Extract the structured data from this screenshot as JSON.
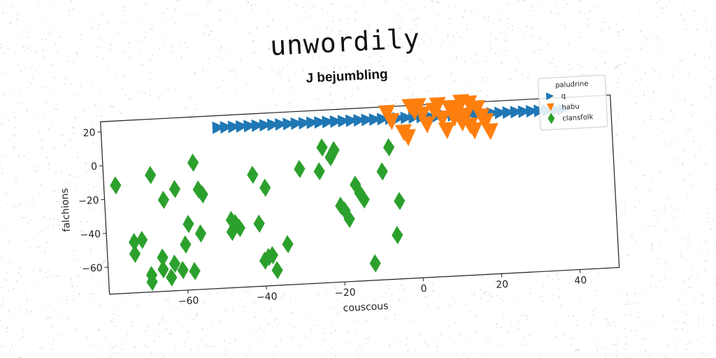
{
  "chart_data": {
    "type": "scatter",
    "title": "unwordily",
    "subtitle": "J bejumbling",
    "xlabel": "couscous",
    "ylabel": "falchions",
    "xlim": [
      -80,
      50
    ],
    "ylim": [
      -76,
      26
    ],
    "xticks": [
      -60,
      -40,
      -20,
      0,
      20,
      40
    ],
    "yticks": [
      20,
      0,
      -20,
      -40,
      -60
    ],
    "grid": false,
    "legend": {
      "title": "paludrine",
      "placement": "top-right"
    },
    "series": [
      {
        "name": "q",
        "marker": "triangle-right",
        "color": "#1f77b4",
        "x": [
          -50,
          -48,
          -46,
          -44,
          -42,
          -40,
          -38,
          -36,
          -34,
          -32,
          -30,
          -28,
          -26,
          -24,
          -22,
          -20,
          -18,
          -16,
          -14,
          -12,
          -10,
          -8,
          -6,
          -4,
          -2,
          0,
          2,
          4,
          6,
          8,
          10,
          12,
          14,
          16,
          18,
          20,
          22,
          24,
          26,
          28,
          30,
          32,
          34,
          36,
          38
        ],
        "y": [
          19,
          19,
          19,
          19,
          19,
          19,
          19,
          19,
          19,
          19,
          19,
          19,
          19,
          19,
          19,
          19,
          19,
          19,
          19,
          19,
          19,
          19,
          19,
          19,
          19,
          19,
          19,
          19,
          19,
          19,
          19,
          19,
          19,
          19,
          19,
          19,
          19,
          19,
          19,
          19,
          19,
          19,
          19,
          19,
          19
        ]
      },
      {
        "name": "habu",
        "marker": "triangle-down",
        "color": "#ff7f0e",
        "x": [
          -7,
          -6,
          -3,
          -2,
          -1,
          0,
          1,
          2,
          3,
          5,
          6,
          7,
          8,
          9,
          10,
          10,
          11,
          12,
          12,
          13,
          14,
          14,
          15,
          16,
          17,
          18,
          19
        ],
        "y": [
          22,
          17,
          10,
          7,
          25,
          22,
          25,
          20,
          14,
          22,
          25,
          17,
          10,
          23,
          17,
          20,
          22,
          26,
          14,
          18,
          25,
          12,
          9,
          22,
          17,
          14,
          8
        ]
      },
      {
        "name": "clansfolk",
        "marker": "diamond",
        "color": "#2ca02c",
        "x": [
          -77,
          -73,
          -73,
          -71,
          -69,
          -69,
          -68,
          -66,
          -66,
          -65,
          -64,
          -63,
          -62,
          -61,
          -60,
          -59,
          -58,
          -57,
          -56,
          -56,
          -55,
          -48,
          -48,
          -47,
          -46,
          -42,
          -41,
          -40,
          -39,
          -39,
          -38,
          -37,
          -34,
          -30,
          -25,
          -24,
          -22,
          -21,
          -20,
          -19,
          -18,
          -16,
          -15,
          -14,
          -12,
          -9,
          -7,
          -6,
          -5
        ],
        "y": [
          -12,
          -46,
          -53,
          -45,
          -66,
          -70,
          -7,
          -63,
          -56,
          -22,
          -68,
          -60,
          -16,
          -64,
          -49,
          -37,
          -65,
          -1,
          -43,
          -17,
          -20,
          -36,
          -43,
          -38,
          -41,
          -10,
          -39,
          -61,
          -59,
          -18,
          -58,
          -67,
          -52,
          -8,
          -10,
          4,
          -2,
          2,
          -31,
          -34,
          -39,
          -19,
          -24,
          -28,
          -66,
          -12,
          2,
          -50,
          -30
        ]
      }
    ]
  }
}
